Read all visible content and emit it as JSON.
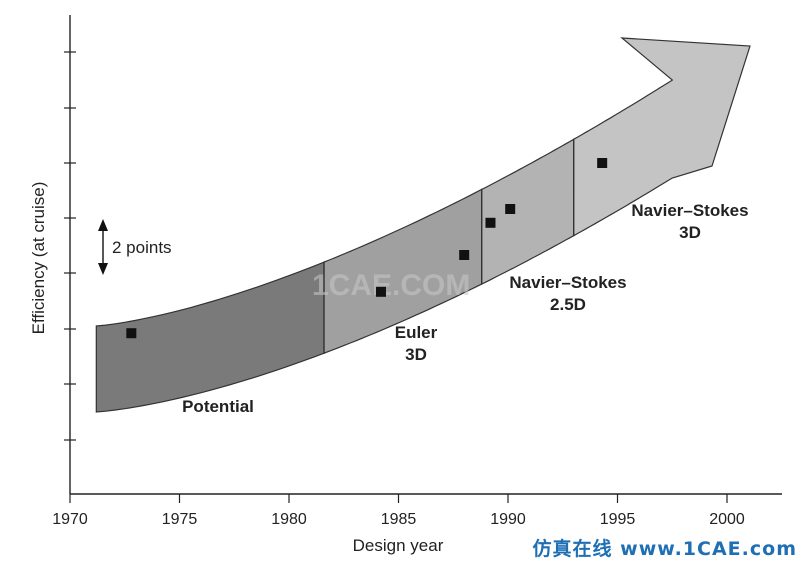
{
  "chart_data": {
    "type": "scatter",
    "xlabel": "Design year",
    "ylabel": "Efficiency (at cruise)",
    "xlim": [
      1970,
      2002
    ],
    "x_ticks": [
      1970,
      1975,
      1980,
      1985,
      1990,
      1995,
      2000
    ],
    "y_unit_note": "2 points",
    "points": [
      {
        "x": 1972.8,
        "y": 2.8
      },
      {
        "x": 1984.2,
        "y": 3.7
      },
      {
        "x": 1988.0,
        "y": 4.5
      },
      {
        "x": 1989.2,
        "y": 5.2
      },
      {
        "x": 1990.1,
        "y": 5.5
      },
      {
        "x": 1994.3,
        "y": 6.5
      }
    ],
    "stages": [
      {
        "label": "Potential",
        "x_from": 1971.2,
        "x_to": 1981.6,
        "color": "#7a7a7a"
      },
      {
        "label": "Euler 3D",
        "label_lines": [
          "Euler",
          "3D"
        ],
        "x_from": 1981.6,
        "x_to": 1988.8,
        "color": "#a0a0a0"
      },
      {
        "label": "Navier–Stokes 2.5D",
        "label_lines": [
          "Navier–Stokes",
          "2.5D"
        ],
        "x_from": 1988.8,
        "x_to": 1993.0,
        "color": "#b3b3b3"
      },
      {
        "label": "Navier–Stokes 3D",
        "label_lines": [
          "Navier–Stokes",
          "3D"
        ],
        "x_from": 1993.0,
        "x_to": 2001.3,
        "color": "#c4c4c4"
      }
    ],
    "grid": false,
    "watermark": "1CAE.COM",
    "brand_text": "仿真在线 www.1CAE.com"
  }
}
